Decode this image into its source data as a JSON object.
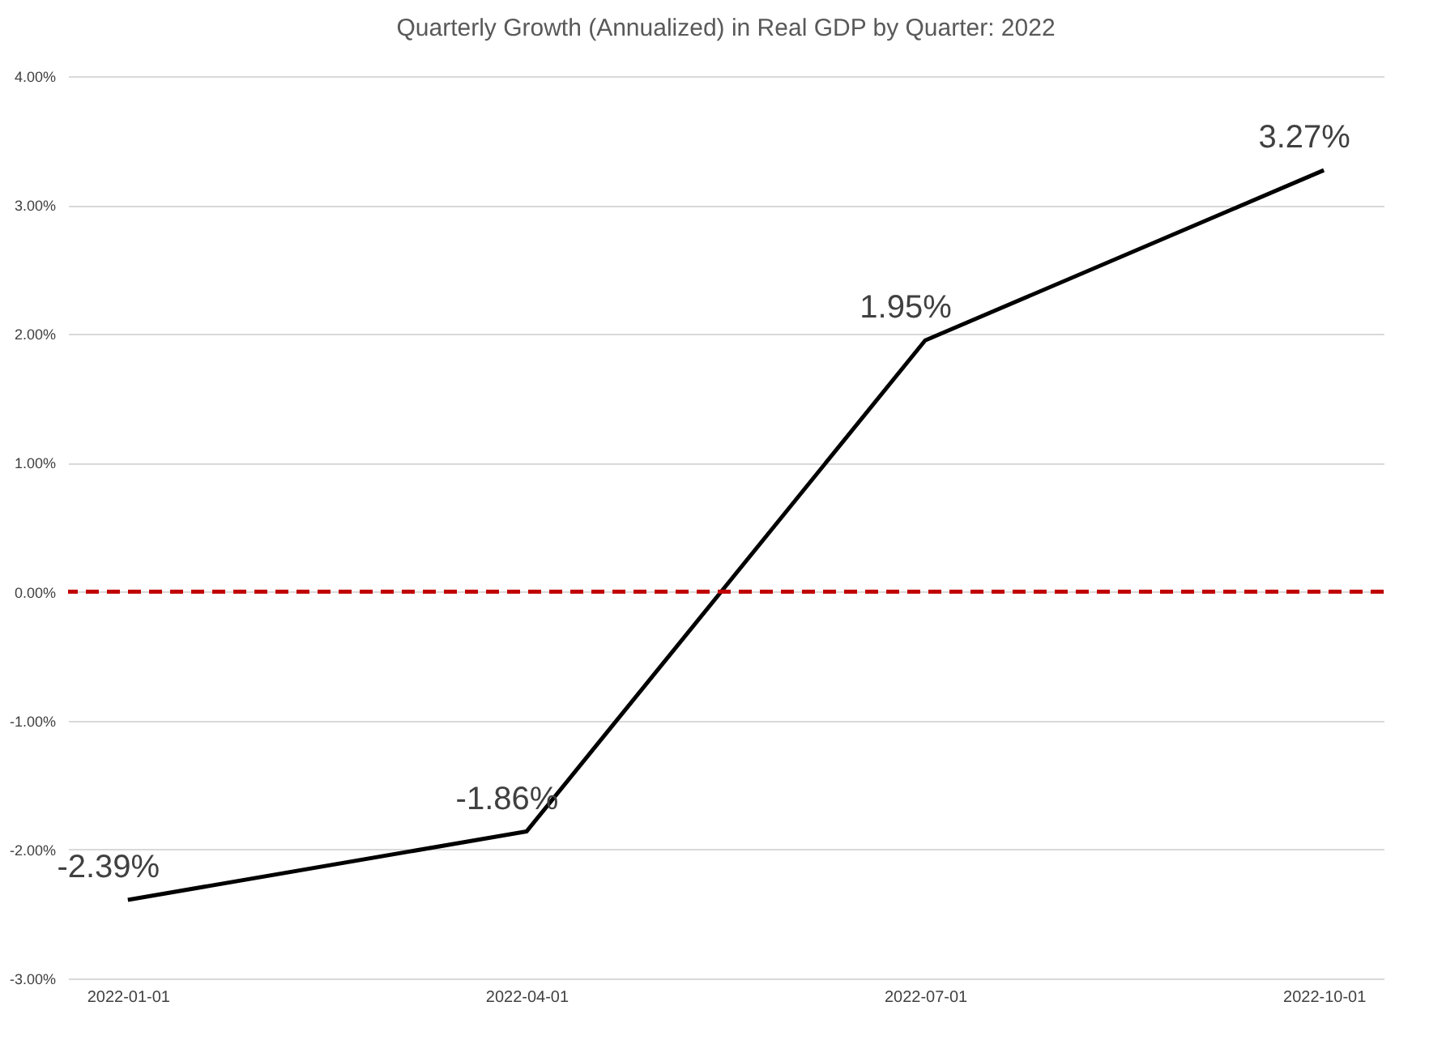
{
  "chart_data": {
    "type": "line",
    "title": "Quarterly Growth (Annualized) in Real GDP by Quarter: 2022",
    "categories": [
      "2022-01-01",
      "2022-04-01",
      "2022-07-01",
      "2022-10-01"
    ],
    "series": [
      {
        "color": "#000000",
        "values": [
          -2.39,
          -1.86,
          1.95,
          3.27
        ],
        "value_labels": [
          "-2.39%",
          "-1.86%",
          "1.95%",
          "3.27%"
        ]
      }
    ],
    "ylim": [
      -3,
      4
    ],
    "yticks": [
      {
        "value": -3,
        "label": "-3.00%"
      },
      {
        "value": -2,
        "label": "-2.00%"
      },
      {
        "value": -1,
        "label": "-1.00%"
      },
      {
        "value": 0,
        "label": "0.00%"
      },
      {
        "value": 1,
        "label": "1.00%"
      },
      {
        "value": 2,
        "label": "2.00%"
      },
      {
        "value": 3,
        "label": "3.00%"
      },
      {
        "value": 4,
        "label": "4.00%"
      }
    ],
    "grid": "y",
    "marker": "none",
    "line_style": "solid",
    "ref_lines": [
      {
        "axis": "y",
        "value": 0,
        "color": "#c00000",
        "line_style": "dashed"
      }
    ]
  }
}
